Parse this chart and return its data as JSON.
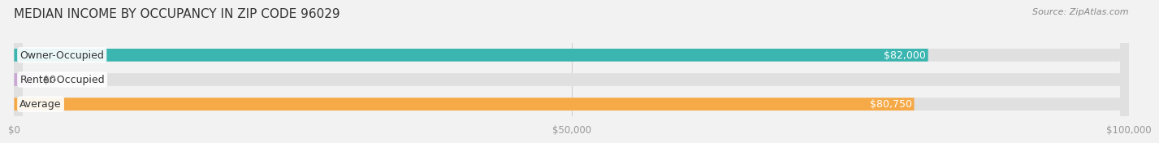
{
  "title": "MEDIAN INCOME BY OCCUPANCY IN ZIP CODE 96029",
  "source": "Source: ZipAtlas.com",
  "categories": [
    "Owner-Occupied",
    "Renter-Occupied",
    "Average"
  ],
  "values": [
    82000,
    0,
    80750
  ],
  "bar_colors": [
    "#3ab5b0",
    "#c9a8d4",
    "#f5a947"
  ],
  "label_colors": [
    "#333333",
    "#333333",
    "#333333"
  ],
  "value_labels": [
    "$82,000",
    "$0",
    "$80,750"
  ],
  "value_label_colors": [
    "#ffffff",
    "#555555",
    "#ffffff"
  ],
  "xlim": [
    0,
    100000
  ],
  "xticks": [
    0,
    50000,
    100000
  ],
  "xtick_labels": [
    "$0",
    "$50,000",
    "$100,000"
  ],
  "bg_color": "#f2f2f2",
  "bar_bg_color": "#e0e0e0",
  "title_fontsize": 11,
  "source_fontsize": 8,
  "label_fontsize": 9,
  "tick_fontsize": 8.5,
  "bar_height": 0.52,
  "title_color": "#333333",
  "tick_color": "#999999",
  "grid_color": "#cccccc"
}
